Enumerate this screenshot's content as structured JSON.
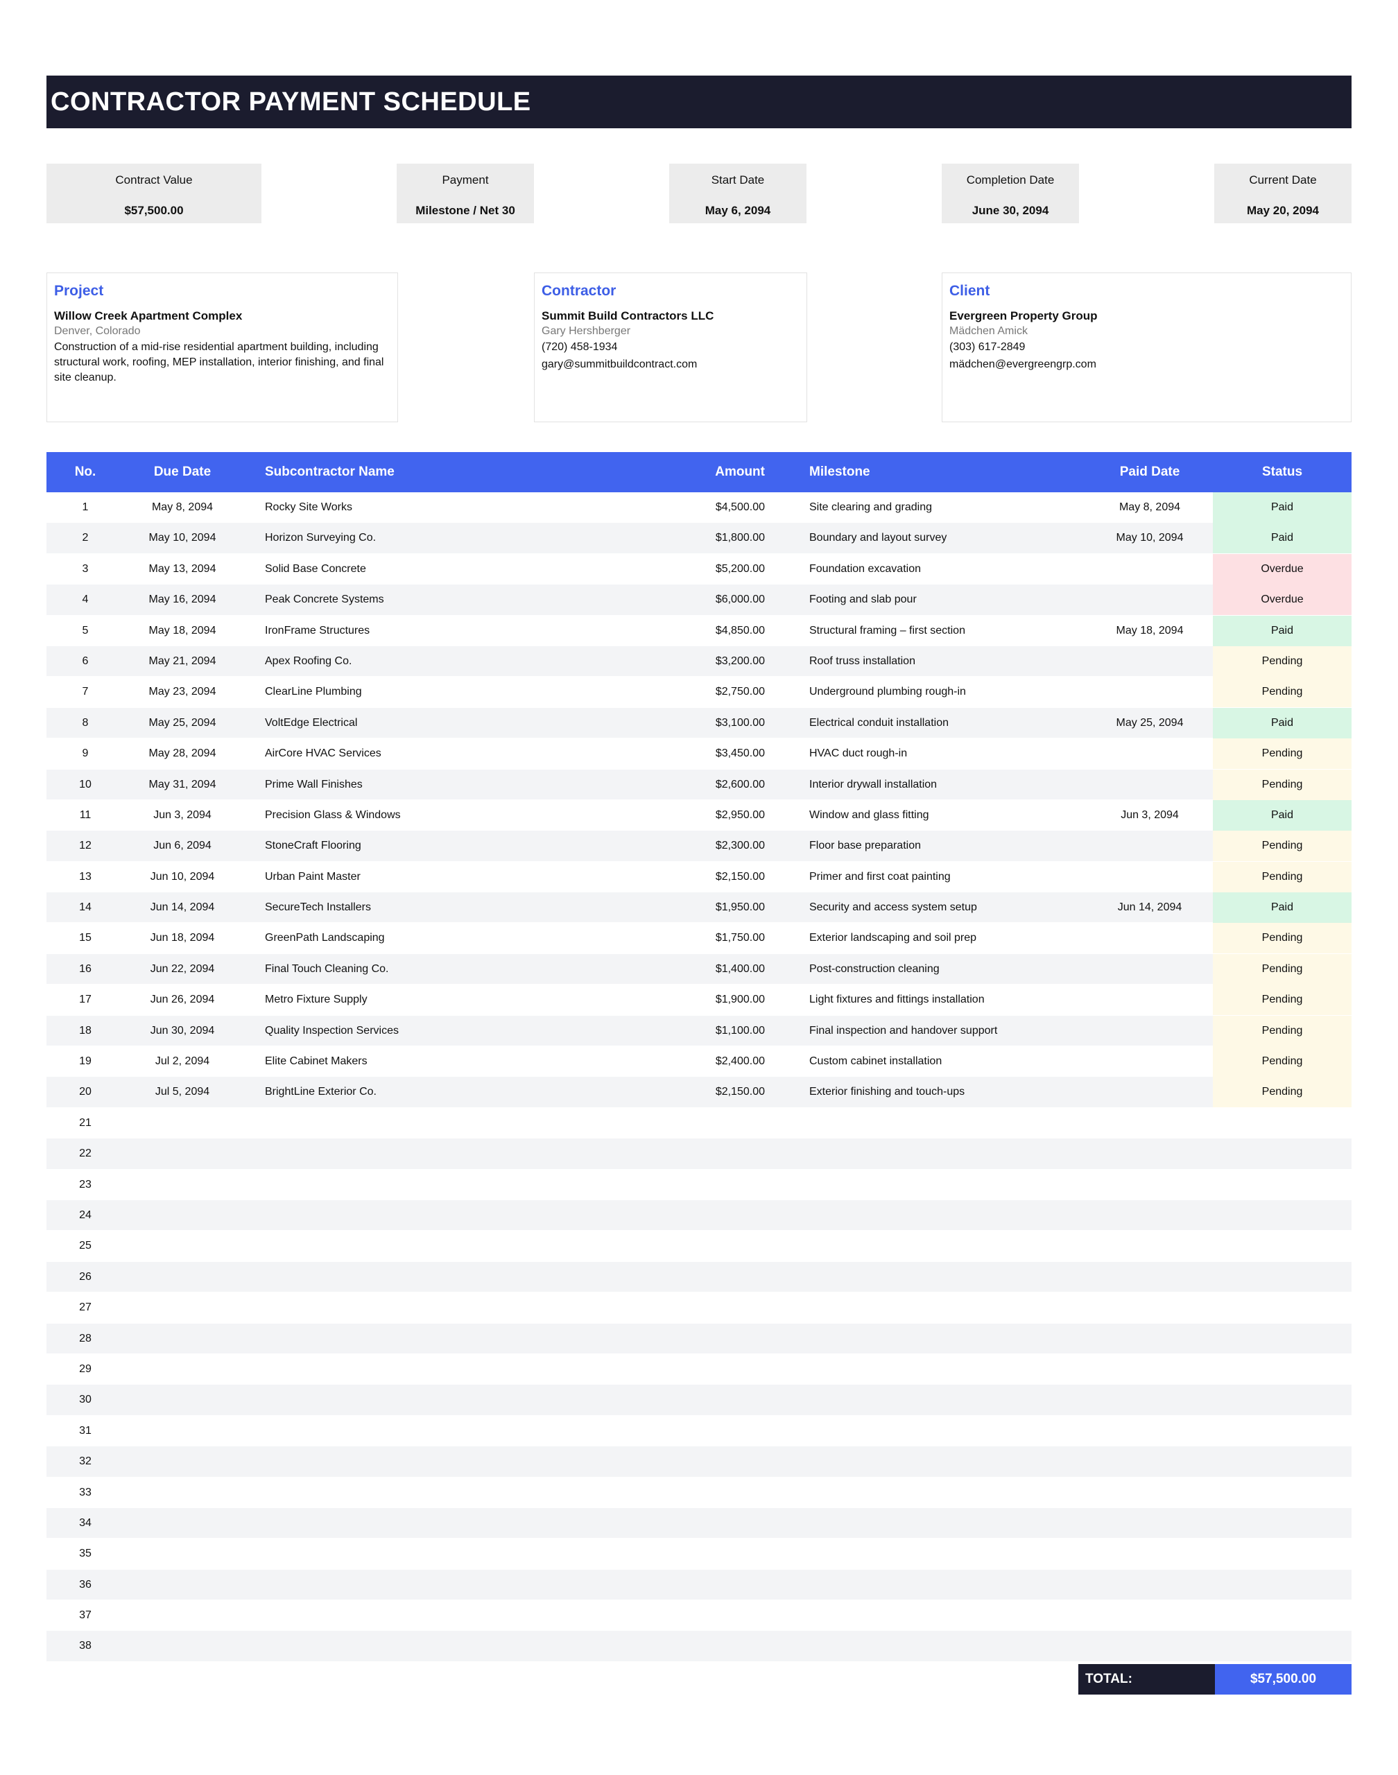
{
  "title": "CONTRACTOR PAYMENT SCHEDULE",
  "summary": [
    {
      "label": "Contract Value",
      "value": "$57,500.00"
    },
    {
      "label": "Payment",
      "value": "Milestone / Net 30"
    },
    {
      "label": "Start Date",
      "value": "May 6, 2094"
    },
    {
      "label": "Completion Date",
      "value": "June 30, 2094"
    },
    {
      "label": "Current Date",
      "value": "May 20, 2094"
    }
  ],
  "project": {
    "heading": "Project",
    "name": "Willow Creek Apartment Complex",
    "location": "Denver, Colorado",
    "description": "Construction of a mid-rise residential apartment building, including structural work, roofing, MEP installation, interior finishing, and final site cleanup."
  },
  "contractor": {
    "heading": "Contractor",
    "name": "Summit Build Contractors LLC",
    "contact": "Gary Hershberger",
    "phone": "(720) 458-1934",
    "email": "gary@summitbuildcontract.com"
  },
  "client": {
    "heading": "Client",
    "name": "Evergreen Property Group",
    "contact": "Mädchen Amick",
    "phone": "(303) 617-2849",
    "email": "mädchen@evergreengrp.com"
  },
  "table": {
    "headers": {
      "no": "No.",
      "due_date": "Due Date",
      "subcontractor": "Subcontractor Name",
      "amount": "Amount",
      "milestone": "Milestone",
      "paid_date": "Paid Date",
      "status": "Status"
    },
    "rows": [
      {
        "no": "1",
        "due": "May 8, 2094",
        "sub": "Rocky Site Works",
        "amount": "$4,500.00",
        "milestone": "Site clearing and grading",
        "paid": "May 8, 2094",
        "status": "Paid"
      },
      {
        "no": "2",
        "due": "May 10, 2094",
        "sub": "Horizon Surveying Co.",
        "amount": "$1,800.00",
        "milestone": "Boundary and layout survey",
        "paid": "May 10, 2094",
        "status": "Paid"
      },
      {
        "no": "3",
        "due": "May 13, 2094",
        "sub": "Solid Base Concrete",
        "amount": "$5,200.00",
        "milestone": "Foundation excavation",
        "paid": "",
        "status": "Overdue"
      },
      {
        "no": "4",
        "due": "May 16, 2094",
        "sub": "Peak Concrete Systems",
        "amount": "$6,000.00",
        "milestone": "Footing and slab pour",
        "paid": "",
        "status": "Overdue"
      },
      {
        "no": "5",
        "due": "May 18, 2094",
        "sub": "IronFrame Structures",
        "amount": "$4,850.00",
        "milestone": "Structural framing – first section",
        "paid": "May 18, 2094",
        "status": "Paid"
      },
      {
        "no": "6",
        "due": "May 21, 2094",
        "sub": "Apex Roofing Co.",
        "amount": "$3,200.00",
        "milestone": "Roof truss installation",
        "paid": "",
        "status": "Pending"
      },
      {
        "no": "7",
        "due": "May 23, 2094",
        "sub": "ClearLine Plumbing",
        "amount": "$2,750.00",
        "milestone": "Underground plumbing rough-in",
        "paid": "",
        "status": "Pending"
      },
      {
        "no": "8",
        "due": "May 25, 2094",
        "sub": "VoltEdge Electrical",
        "amount": "$3,100.00",
        "milestone": "Electrical conduit installation",
        "paid": "May 25, 2094",
        "status": "Paid"
      },
      {
        "no": "9",
        "due": "May 28, 2094",
        "sub": "AirCore HVAC Services",
        "amount": "$3,450.00",
        "milestone": "HVAC duct rough-in",
        "paid": "",
        "status": "Pending"
      },
      {
        "no": "10",
        "due": "May 31, 2094",
        "sub": "Prime Wall Finishes",
        "amount": "$2,600.00",
        "milestone": "Interior drywall installation",
        "paid": "",
        "status": "Pending"
      },
      {
        "no": "11",
        "due": "Jun 3, 2094",
        "sub": "Precision Glass & Windows",
        "amount": "$2,950.00",
        "milestone": "Window and glass fitting",
        "paid": "Jun 3, 2094",
        "status": "Paid"
      },
      {
        "no": "12",
        "due": "Jun 6, 2094",
        "sub": "StoneCraft Flooring",
        "amount": "$2,300.00",
        "milestone": "Floor base preparation",
        "paid": "",
        "status": "Pending"
      },
      {
        "no": "13",
        "due": "Jun 10, 2094",
        "sub": "Urban Paint Master",
        "amount": "$2,150.00",
        "milestone": "Primer and first coat painting",
        "paid": "",
        "status": "Pending"
      },
      {
        "no": "14",
        "due": "Jun 14, 2094",
        "sub": "SecureTech Installers",
        "amount": "$1,950.00",
        "milestone": "Security and access system setup",
        "paid": "Jun 14, 2094",
        "status": "Paid"
      },
      {
        "no": "15",
        "due": "Jun 18, 2094",
        "sub": "GreenPath Landscaping",
        "amount": "$1,750.00",
        "milestone": "Exterior landscaping and soil prep",
        "paid": "",
        "status": "Pending"
      },
      {
        "no": "16",
        "due": "Jun 22, 2094",
        "sub": "Final Touch Cleaning Co.",
        "amount": "$1,400.00",
        "milestone": "Post-construction cleaning",
        "paid": "",
        "status": "Pending"
      },
      {
        "no": "17",
        "due": "Jun 26, 2094",
        "sub": "Metro Fixture Supply",
        "amount": "$1,900.00",
        "milestone": "Light fixtures and fittings installation",
        "paid": "",
        "status": "Pending"
      },
      {
        "no": "18",
        "due": "Jun 30, 2094",
        "sub": "Quality Inspection Services",
        "amount": "$1,100.00",
        "milestone": "Final inspection and handover support",
        "paid": "",
        "status": "Pending"
      },
      {
        "no": "19",
        "due": "Jul 2, 2094",
        "sub": "Elite Cabinet Makers",
        "amount": "$2,400.00",
        "milestone": "Custom cabinet installation",
        "paid": "",
        "status": "Pending"
      },
      {
        "no": "20",
        "due": "Jul 5, 2094",
        "sub": "BrightLine Exterior Co.",
        "amount": "$2,150.00",
        "milestone": "Exterior finishing and touch-ups",
        "paid": "",
        "status": "Pending"
      },
      {
        "no": "21",
        "due": "",
        "sub": "",
        "amount": "",
        "milestone": "",
        "paid": "",
        "status": ""
      },
      {
        "no": "22",
        "due": "",
        "sub": "",
        "amount": "",
        "milestone": "",
        "paid": "",
        "status": ""
      },
      {
        "no": "23",
        "due": "",
        "sub": "",
        "amount": "",
        "milestone": "",
        "paid": "",
        "status": ""
      },
      {
        "no": "24",
        "due": "",
        "sub": "",
        "amount": "",
        "milestone": "",
        "paid": "",
        "status": ""
      },
      {
        "no": "25",
        "due": "",
        "sub": "",
        "amount": "",
        "milestone": "",
        "paid": "",
        "status": ""
      },
      {
        "no": "26",
        "due": "",
        "sub": "",
        "amount": "",
        "milestone": "",
        "paid": "",
        "status": ""
      },
      {
        "no": "27",
        "due": "",
        "sub": "",
        "amount": "",
        "milestone": "",
        "paid": "",
        "status": ""
      },
      {
        "no": "28",
        "due": "",
        "sub": "",
        "amount": "",
        "milestone": "",
        "paid": "",
        "status": ""
      },
      {
        "no": "29",
        "due": "",
        "sub": "",
        "amount": "",
        "milestone": "",
        "paid": "",
        "status": ""
      },
      {
        "no": "30",
        "due": "",
        "sub": "",
        "amount": "",
        "milestone": "",
        "paid": "",
        "status": ""
      },
      {
        "no": "31",
        "due": "",
        "sub": "",
        "amount": "",
        "milestone": "",
        "paid": "",
        "status": ""
      },
      {
        "no": "32",
        "due": "",
        "sub": "",
        "amount": "",
        "milestone": "",
        "paid": "",
        "status": ""
      },
      {
        "no": "33",
        "due": "",
        "sub": "",
        "amount": "",
        "milestone": "",
        "paid": "",
        "status": ""
      },
      {
        "no": "34",
        "due": "",
        "sub": "",
        "amount": "",
        "milestone": "",
        "paid": "",
        "status": ""
      },
      {
        "no": "35",
        "due": "",
        "sub": "",
        "amount": "",
        "milestone": "",
        "paid": "",
        "status": ""
      },
      {
        "no": "36",
        "due": "",
        "sub": "",
        "amount": "",
        "milestone": "",
        "paid": "",
        "status": ""
      },
      {
        "no": "37",
        "due": "",
        "sub": "",
        "amount": "",
        "milestone": "",
        "paid": "",
        "status": ""
      },
      {
        "no": "38",
        "due": "",
        "sub": "",
        "amount": "",
        "milestone": "",
        "paid": "",
        "status": ""
      }
    ]
  },
  "total": {
    "label": "TOTAL:",
    "value": "$57,500.00"
  },
  "colors": {
    "title_bg": "#1b1c2e",
    "header_bg": "#4164ef",
    "accent_text": "#3d5ee6",
    "status_paid": "#d8f6e4",
    "status_overdue": "#fde0e3",
    "status_pending": "#fef9e6"
  }
}
